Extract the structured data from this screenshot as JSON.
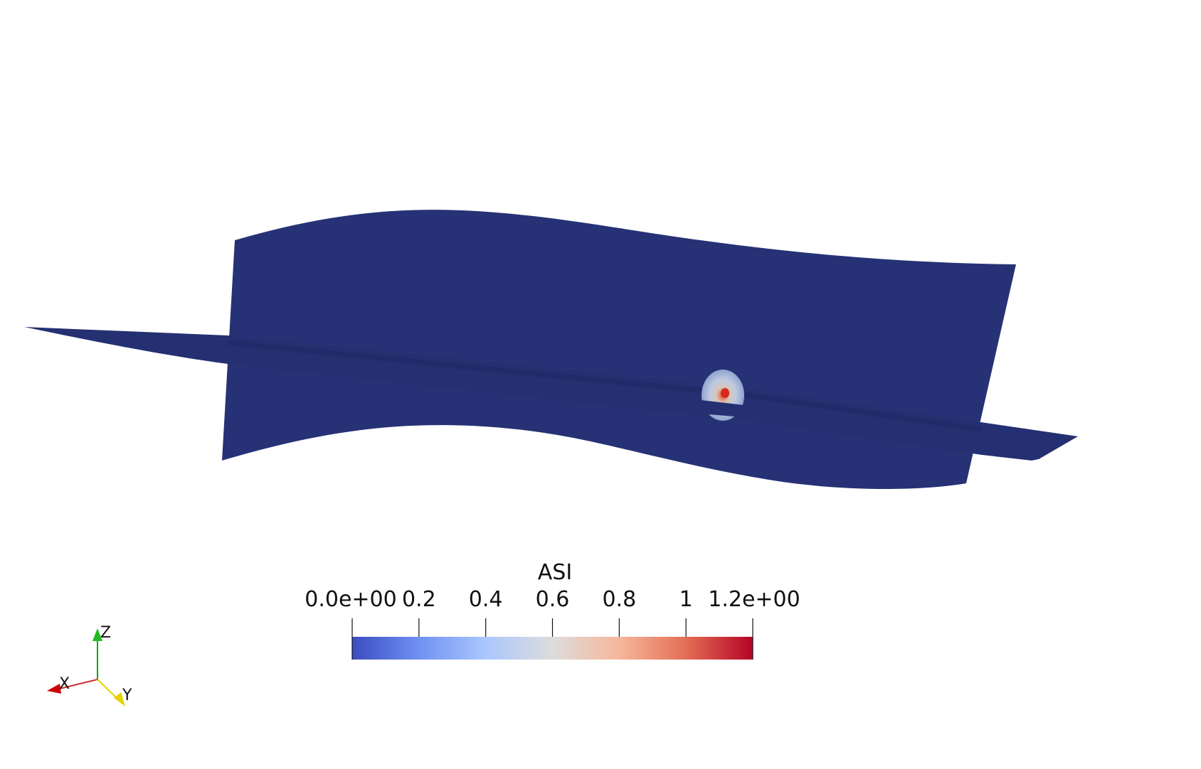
{
  "viewport": {
    "background": "#ffffff",
    "surface_color": "#263275",
    "surface_shadow": "#1f2a66"
  },
  "scalar_bar": {
    "title": "ASI",
    "range": [
      0.0,
      1.2
    ],
    "colormap": [
      "#3b4cc0",
      "#7b9ff9",
      "#c0d4f5",
      "#dddcdc",
      "#f2cbb7",
      "#ee8468",
      "#b40426"
    ],
    "ticks": [
      {
        "value": 0.0,
        "label": "0.0e+00"
      },
      {
        "value": 0.2,
        "label": "0.2"
      },
      {
        "value": 0.4,
        "label": "0.4"
      },
      {
        "value": 0.6,
        "label": "0.6"
      },
      {
        "value": 0.8,
        "label": "0.8"
      },
      {
        "value": 1.0,
        "label": "1"
      },
      {
        "value": 1.2,
        "label": "1.2e+00"
      }
    ]
  },
  "orientation_axes": {
    "x_label": "X",
    "y_label": "Y",
    "z_label": "Z",
    "x_color": "#cc0000",
    "y_color": "#e6d200",
    "z_color": "#00aa00"
  }
}
